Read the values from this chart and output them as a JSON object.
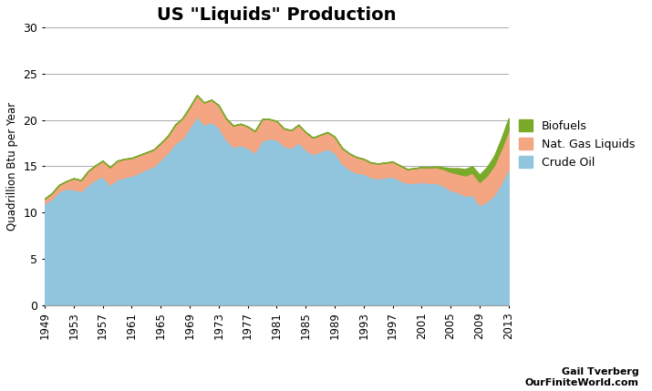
{
  "title": "US \"Liquids\" Production",
  "ylabel": "Quadrillion Btu per Year",
  "ylim": [
    0,
    30
  ],
  "yticks": [
    0,
    5,
    10,
    15,
    20,
    25,
    30
  ],
  "years": [
    1949,
    1950,
    1951,
    1952,
    1953,
    1954,
    1955,
    1956,
    1957,
    1958,
    1959,
    1960,
    1961,
    1962,
    1963,
    1964,
    1965,
    1966,
    1967,
    1968,
    1969,
    1970,
    1971,
    1972,
    1973,
    1974,
    1975,
    1976,
    1977,
    1978,
    1979,
    1980,
    1981,
    1982,
    1983,
    1984,
    1985,
    1986,
    1987,
    1988,
    1989,
    1990,
    1991,
    1992,
    1993,
    1994,
    1995,
    1996,
    1997,
    1998,
    1999,
    2000,
    2001,
    2002,
    2003,
    2004,
    2005,
    2006,
    2007,
    2008,
    2009,
    2010,
    2011,
    2012,
    2013
  ],
  "crude_oil": [
    11.0,
    11.5,
    12.3,
    12.6,
    12.5,
    12.3,
    13.0,
    13.6,
    13.9,
    13.0,
    13.6,
    13.8,
    14.0,
    14.3,
    14.7,
    15.0,
    15.7,
    16.5,
    17.5,
    18.0,
    19.2,
    20.4,
    19.5,
    19.8,
    19.2,
    17.9,
    17.1,
    17.3,
    17.0,
    16.5,
    17.8,
    18.0,
    17.9,
    17.2,
    17.0,
    17.6,
    16.8,
    16.3,
    16.6,
    16.9,
    16.5,
    15.3,
    14.7,
    14.3,
    14.2,
    13.8,
    13.7,
    13.8,
    13.9,
    13.5,
    13.2,
    13.2,
    13.3,
    13.2,
    13.2,
    12.9,
    12.4,
    12.2,
    11.8,
    11.9,
    10.8,
    11.2,
    11.9,
    13.2,
    14.7
  ],
  "nat_gas_liquids": [
    0.5,
    0.6,
    0.7,
    0.8,
    1.2,
    1.2,
    1.5,
    1.5,
    1.7,
    1.9,
    2.0,
    2.0,
    1.9,
    1.9,
    1.8,
    1.8,
    1.8,
    1.8,
    2.0,
    2.2,
    2.2,
    2.3,
    2.4,
    2.4,
    2.4,
    2.3,
    2.3,
    2.3,
    2.3,
    2.3,
    2.3,
    2.1,
    2.0,
    1.9,
    1.9,
    1.9,
    1.9,
    1.8,
    1.8,
    1.8,
    1.7,
    1.7,
    1.7,
    1.7,
    1.6,
    1.6,
    1.6,
    1.6,
    1.6,
    1.6,
    1.5,
    1.6,
    1.6,
    1.7,
    1.7,
    1.8,
    2.0,
    2.0,
    2.2,
    2.4,
    2.5,
    2.8,
    3.2,
    3.7,
    4.2
  ],
  "biofuels": [
    0.0,
    0.0,
    0.0,
    0.0,
    0.0,
    0.0,
    0.0,
    0.0,
    0.0,
    0.0,
    0.0,
    0.0,
    0.0,
    0.0,
    0.0,
    0.0,
    0.0,
    0.0,
    0.0,
    0.0,
    0.0,
    0.0,
    0.0,
    0.0,
    0.0,
    0.0,
    0.0,
    0.0,
    0.0,
    0.0,
    0.0,
    0.0,
    0.0,
    0.0,
    0.0,
    0.0,
    0.0,
    0.0,
    0.0,
    0.0,
    0.0,
    0.0,
    0.0,
    0.0,
    0.0,
    0.0,
    0.0,
    0.0,
    0.0,
    0.0,
    0.0,
    0.0,
    0.0,
    0.0,
    0.1,
    0.2,
    0.4,
    0.6,
    0.7,
    0.7,
    0.8,
    0.9,
    1.0,
    1.1,
    1.3
  ],
  "crude_color": "#92C5DE",
  "ngl_color": "#F4A582",
  "bio_color": "#7AAA2A",
  "background_color": "#ffffff",
  "watermark_line1": "Gail Tverberg",
  "watermark_line2": "OurFiniteWorld.com",
  "xtick_labels": [
    "1949",
    "1953",
    "1957",
    "1961",
    "1965",
    "1969",
    "1973",
    "1977",
    "1981",
    "1985",
    "1989",
    "1993",
    "1997",
    "2001",
    "2005",
    "2009",
    "2013"
  ],
  "xtick_positions": [
    1949,
    1953,
    1957,
    1961,
    1965,
    1969,
    1973,
    1977,
    1981,
    1985,
    1989,
    1993,
    1997,
    2001,
    2005,
    2009,
    2013
  ],
  "xlim": [
    1949,
    2013
  ],
  "legend_labels": [
    "Biofuels",
    "Nat. Gas Liquids",
    "Crude Oil"
  ]
}
